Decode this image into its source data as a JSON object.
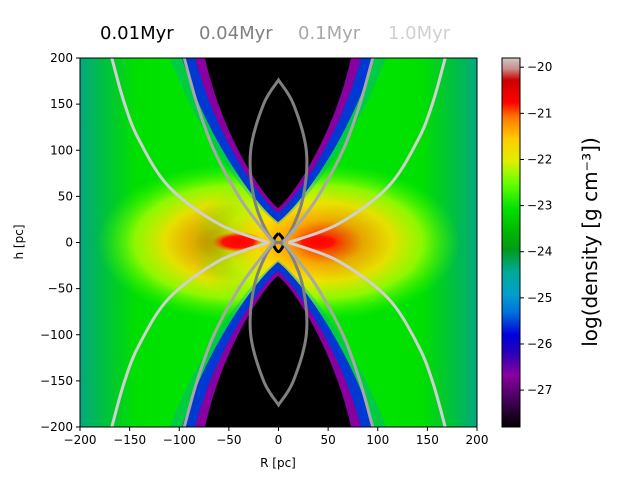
{
  "chart_data": {
    "type": "heatmap",
    "title_entries": [
      {
        "label": "0.01Myr",
        "color": "#000000"
      },
      {
        "label": "0.04Myr",
        "color": "#808080"
      },
      {
        "label": "0.1Myr",
        "color": "#a8a8a8"
      },
      {
        "label": "1.0Myr",
        "color": "#d0d0d0"
      }
    ],
    "xlabel": "R [pc]",
    "ylabel": "h [pc]",
    "xlim": [
      -200,
      200
    ],
    "ylim": [
      -200,
      200
    ],
    "xticks": [
      -200,
      -150,
      -100,
      -50,
      0,
      50,
      100,
      150,
      200
    ],
    "yticks": [
      -200,
      -150,
      -100,
      -50,
      0,
      50,
      100,
      150,
      200
    ],
    "xtick_labels": [
      "−200",
      "−150",
      "−100",
      "−50",
      "0",
      "50",
      "100",
      "150",
      "200"
    ],
    "ytick_labels": [
      "−200",
      "−150",
      "−100",
      "−50",
      "0",
      "50",
      "100",
      "150",
      "200"
    ],
    "colorbar": {
      "label": "log(density [g cm⁻³])",
      "range": [
        -27.8,
        -19.8
      ],
      "ticks": [
        -27,
        -26,
        -25,
        -24,
        -23,
        -22,
        -21,
        -20
      ],
      "tick_labels": [
        "−27",
        "−26",
        "−25",
        "−24",
        "−23",
        "−22",
        "−21",
        "−20"
      ],
      "colormap": "nipy_spectral-like"
    },
    "contours": [
      {
        "name": "0.01Myr",
        "color": "#000000",
        "shape": "central-lobe",
        "points": [
          [
            0,
            10
          ],
          [
            4,
            5
          ],
          [
            5,
            0
          ],
          [
            4,
            -5
          ],
          [
            0,
            -10
          ],
          [
            -4,
            -5
          ],
          [
            -5,
            0
          ],
          [
            -4,
            5
          ]
        ]
      },
      {
        "name": "0.04Myr",
        "color": "#808080",
        "shape": "bipolar-lobes",
        "points": [
          [
            0,
            176
          ],
          [
            15,
            150
          ],
          [
            28,
            100
          ],
          [
            25,
            50
          ],
          [
            12,
            12
          ],
          [
            0,
            0
          ],
          [
            -12,
            12
          ],
          [
            -25,
            50
          ],
          [
            -28,
            100
          ],
          [
            -15,
            150
          ],
          [
            0,
            176
          ],
          [
            0,
            -176
          ],
          [
            15,
            -150
          ],
          [
            28,
            -100
          ],
          [
            25,
            -50
          ],
          [
            12,
            -12
          ],
          [
            0,
            0
          ],
          [
            -12,
            -12
          ],
          [
            -25,
            -50
          ],
          [
            -28,
            -100
          ],
          [
            -15,
            -150
          ],
          [
            0,
            -176
          ]
        ]
      },
      {
        "name": "0.1Myr",
        "color": "#a8a8a8",
        "shape": "hourglass",
        "points": [
          [
            5,
            0
          ],
          [
            20,
            20
          ],
          [
            40,
            50
          ],
          [
            65,
            100
          ],
          [
            82,
            150
          ],
          [
            95,
            200
          ],
          [
            5,
            0
          ],
          [
            20,
            -20
          ],
          [
            40,
            -50
          ],
          [
            65,
            -100
          ],
          [
            82,
            -150
          ],
          [
            95,
            -200
          ],
          [
            -5,
            0
          ],
          [
            -20,
            20
          ],
          [
            -40,
            50
          ],
          [
            -65,
            100
          ],
          [
            -82,
            150
          ],
          [
            -95,
            200
          ],
          [
            -5,
            0
          ],
          [
            -20,
            -20
          ],
          [
            -40,
            -50
          ],
          [
            -65,
            -100
          ],
          [
            -82,
            -150
          ],
          [
            -95,
            -200
          ]
        ]
      },
      {
        "name": "1.0Myr",
        "color": "#d0d0d0",
        "shape": "hourglass",
        "points": [
          [
            10,
            0
          ],
          [
            60,
            20
          ],
          [
            110,
            60
          ],
          [
            140,
            110
          ],
          [
            155,
            150
          ],
          [
            168,
            200
          ],
          [
            10,
            0
          ],
          [
            60,
            -20
          ],
          [
            110,
            -60
          ],
          [
            140,
            -110
          ],
          [
            155,
            -150
          ],
          [
            168,
            -200
          ],
          [
            -10,
            0
          ],
          [
            -60,
            20
          ],
          [
            -110,
            60
          ],
          [
            -140,
            110
          ],
          [
            -155,
            150
          ],
          [
            -168,
            200
          ],
          [
            -10,
            0
          ],
          [
            -60,
            -20
          ],
          [
            -110,
            -60
          ],
          [
            -140,
            -110
          ],
          [
            -155,
            -150
          ],
          [
            -168,
            -200
          ]
        ]
      }
    ]
  }
}
